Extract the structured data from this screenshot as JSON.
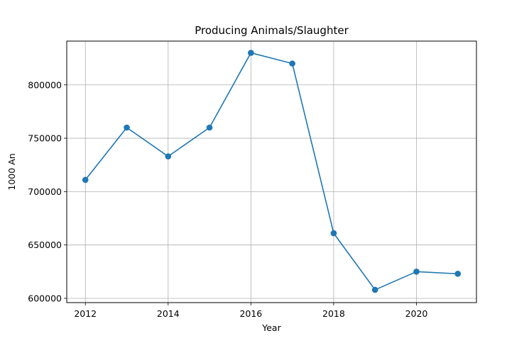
{
  "chart_data": {
    "type": "line",
    "title": "Producing Animals/Slaughter",
    "xlabel": "Year",
    "ylabel": "1000 An",
    "x": [
      2012,
      2013,
      2014,
      2015,
      2016,
      2017,
      2018,
      2019,
      2020,
      2021
    ],
    "series": [
      {
        "values": [
          711000,
          760000,
          733000,
          760000,
          830000,
          820000,
          661000,
          608000,
          625000,
          623000
        ],
        "color": "#1f77b4",
        "marker": "circle"
      }
    ],
    "xlim": [
      2011.55,
      2021.45
    ],
    "ylim": [
      596000,
      841000
    ],
    "xticks": [
      2012,
      2014,
      2016,
      2018,
      2020
    ],
    "yticks": [
      600000,
      650000,
      700000,
      750000,
      800000
    ],
    "grid": true,
    "legend": "none"
  }
}
